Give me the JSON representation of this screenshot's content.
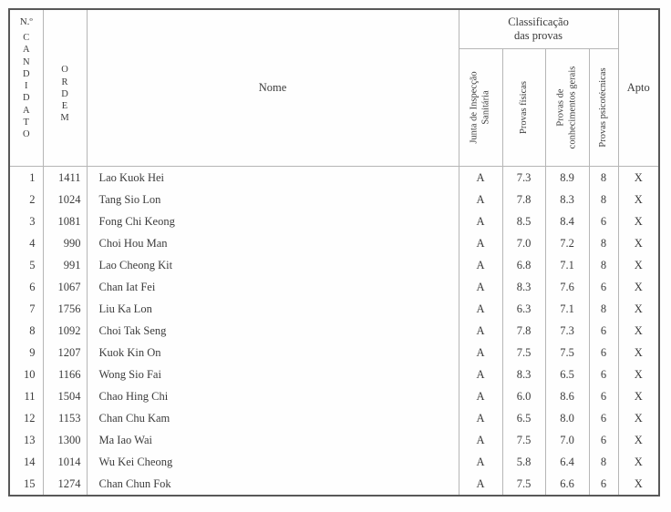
{
  "table": {
    "headers": {
      "candidato_top": "N.º",
      "candidato_letters": "C\nA\nN\nD\nI\nD\nA\nT\nO",
      "ordem_letters": "O\nR\nD\nE\nM",
      "nome": "Nome",
      "classificacao_title": "Classificação\ndas provas",
      "sub_junta": "Junta de Inspecção\nSanitária",
      "sub_fisicas": "Provas físicas",
      "sub_conhecimentos": "Provas de\nconhecimentos gerais",
      "sub_psicotecnicas": "Provas psicotécnicas",
      "apto": "Apto"
    },
    "rows": [
      {
        "num": "1",
        "ordem": "1411",
        "nome": "Lao Kuok Hei",
        "junta": "A",
        "fisicas": "7.3",
        "conhecimentos": "8.9",
        "psicotecnicas": "8",
        "apto": "X"
      },
      {
        "num": "2",
        "ordem": "1024",
        "nome": "Tang Sio Lon",
        "junta": "A",
        "fisicas": "7.8",
        "conhecimentos": "8.3",
        "psicotecnicas": "8",
        "apto": "X"
      },
      {
        "num": "3",
        "ordem": "1081",
        "nome": "Fong Chi Keong",
        "junta": "A",
        "fisicas": "8.5",
        "conhecimentos": "8.4",
        "psicotecnicas": "6",
        "apto": "X"
      },
      {
        "num": "4",
        "ordem": "990",
        "nome": "Choi Hou Man",
        "junta": "A",
        "fisicas": "7.0",
        "conhecimentos": "7.2",
        "psicotecnicas": "8",
        "apto": "X"
      },
      {
        "num": "5",
        "ordem": "991",
        "nome": "Lao Cheong Kit",
        "junta": "A",
        "fisicas": "6.8",
        "conhecimentos": "7.1",
        "psicotecnicas": "8",
        "apto": "X"
      },
      {
        "num": "6",
        "ordem": "1067",
        "nome": "Chan Iat Fei",
        "junta": "A",
        "fisicas": "8.3",
        "conhecimentos": "7.6",
        "psicotecnicas": "6",
        "apto": "X"
      },
      {
        "num": "7",
        "ordem": "1756",
        "nome": "Liu Ka Lon",
        "junta": "A",
        "fisicas": "6.3",
        "conhecimentos": "7.1",
        "psicotecnicas": "8",
        "apto": "X"
      },
      {
        "num": "8",
        "ordem": "1092",
        "nome": "Choi Tak Seng",
        "junta": "A",
        "fisicas": "7.8",
        "conhecimentos": "7.3",
        "psicotecnicas": "6",
        "apto": "X"
      },
      {
        "num": "9",
        "ordem": "1207",
        "nome": "Kuok Kin On",
        "junta": "A",
        "fisicas": "7.5",
        "conhecimentos": "7.5",
        "psicotecnicas": "6",
        "apto": "X"
      },
      {
        "num": "10",
        "ordem": "1166",
        "nome": "Wong Sio Fai",
        "junta": "A",
        "fisicas": "8.3",
        "conhecimentos": "6.5",
        "psicotecnicas": "6",
        "apto": "X"
      },
      {
        "num": "11",
        "ordem": "1504",
        "nome": "Chao Hing Chi",
        "junta": "A",
        "fisicas": "6.0",
        "conhecimentos": "8.6",
        "psicotecnicas": "6",
        "apto": "X"
      },
      {
        "num": "12",
        "ordem": "1153",
        "nome": "Chan Chu Kam",
        "junta": "A",
        "fisicas": "6.5",
        "conhecimentos": "8.0",
        "psicotecnicas": "6",
        "apto": "X"
      },
      {
        "num": "13",
        "ordem": "1300",
        "nome": "Ma Iao Wai",
        "junta": "A",
        "fisicas": "7.5",
        "conhecimentos": "7.0",
        "psicotecnicas": "6",
        "apto": "X"
      },
      {
        "num": "14",
        "ordem": "1014",
        "nome": "Wu Kei Cheong",
        "junta": "A",
        "fisicas": "5.8",
        "conhecimentos": "6.4",
        "psicotecnicas": "8",
        "apto": "X"
      },
      {
        "num": "15",
        "ordem": "1274",
        "nome": "Chan Chun Fok",
        "junta": "A",
        "fisicas": "7.5",
        "conhecimentos": "6.6",
        "psicotecnicas": "6",
        "apto": "X"
      }
    ]
  }
}
